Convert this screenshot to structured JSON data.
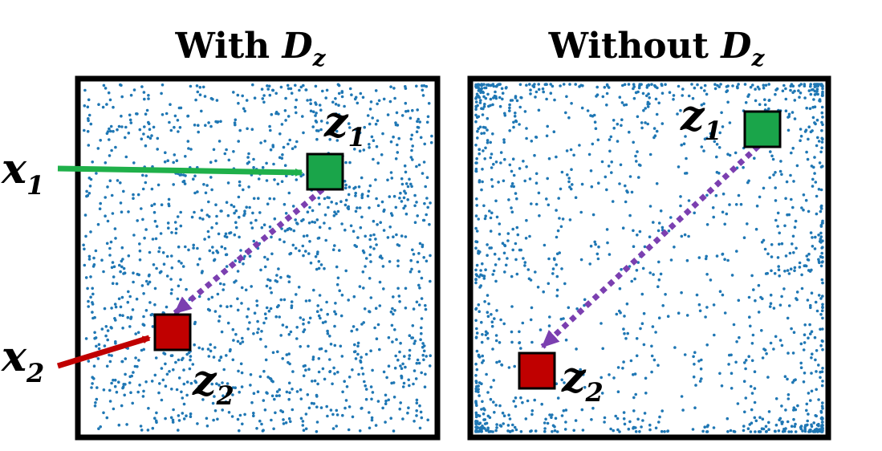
{
  "panels": [
    {
      "title": "With ",
      "title_var": "D",
      "title_sub": "z"
    },
    {
      "title": "Without ",
      "title_var": "D",
      "title_sub": "z"
    }
  ],
  "labels": {
    "x1": {
      "var": "x",
      "sub": "1"
    },
    "x2": {
      "var": "x",
      "sub": "2"
    },
    "z1": {
      "var": "z",
      "sub": "1"
    },
    "z2": {
      "var": "z",
      "sub": "2"
    }
  },
  "colors": {
    "dots": "#1f77b4",
    "z1_fill": "#1aa54a",
    "z2_fill": "#c00000",
    "x1_arrow": "#1fb04a",
    "x2_arrow": "#c00000",
    "link_arrow": "#7b3fb0",
    "frame": "#000000"
  },
  "distributions": {
    "with": "uniform",
    "without": "clustered-corners"
  }
}
